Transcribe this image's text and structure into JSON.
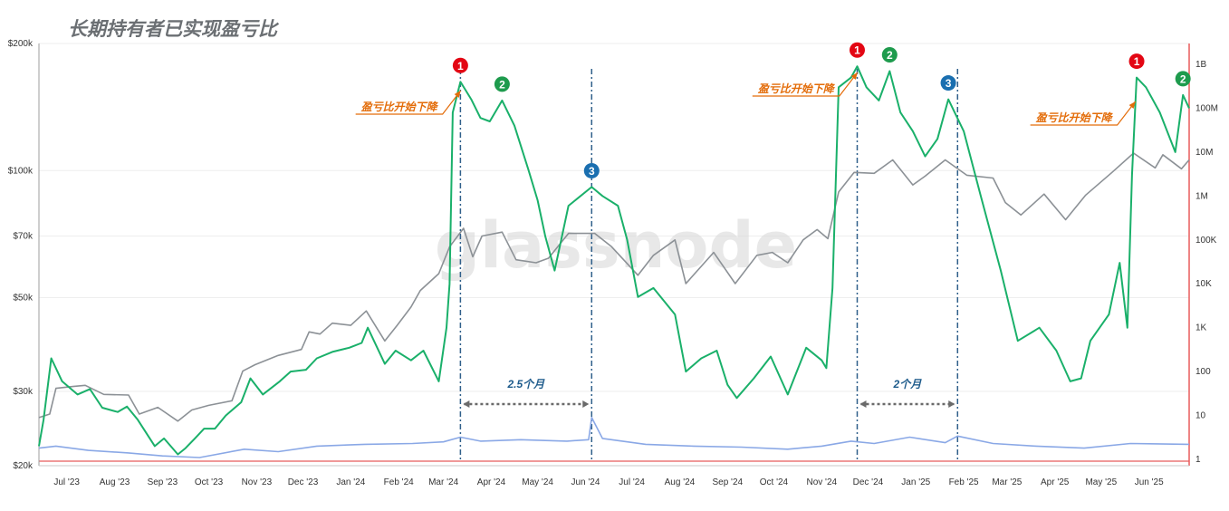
{
  "title": "长期持有者已实现盈亏比",
  "watermark": "glassnode",
  "chart_data": {
    "type": "line",
    "title": "长期持有者已实现盈亏比",
    "left_axis": {
      "scale": "log",
      "range": [
        20000,
        200000
      ],
      "ticks": [
        {
          "value": 200000,
          "label": "$200k"
        },
        {
          "value": 100000,
          "label": "$100k"
        },
        {
          "value": 70000,
          "label": "$70k"
        },
        {
          "value": 50000,
          "label": "$50k"
        },
        {
          "value": 30000,
          "label": "$30k"
        },
        {
          "value": 20000,
          "label": "$20k"
        }
      ]
    },
    "right_axis": {
      "scale": "log",
      "ticks": [
        {
          "value": 1000000000,
          "label": "1B"
        },
        {
          "value": 100000000,
          "label": "100M"
        },
        {
          "value": 10000000,
          "label": "10M"
        },
        {
          "value": 1000000,
          "label": "1M"
        },
        {
          "value": 100000,
          "label": "100K"
        },
        {
          "value": 10000,
          "label": "10K"
        },
        {
          "value": 1000,
          "label": "1K"
        },
        {
          "value": 100,
          "label": "100"
        },
        {
          "value": 10,
          "label": "10"
        },
        {
          "value": 1,
          "label": "1"
        }
      ]
    },
    "x_axis": {
      "range": [
        "2023-06-13",
        "2025-06-27"
      ],
      "ticks": [
        {
          "date": "2023-07-01",
          "label": "Jul '23"
        },
        {
          "date": "2023-08-01",
          "label": "Aug '23"
        },
        {
          "date": "2023-09-01",
          "label": "Sep '23"
        },
        {
          "date": "2023-10-01",
          "label": "Oct '23"
        },
        {
          "date": "2023-11-01",
          "label": "Nov '23"
        },
        {
          "date": "2023-12-01",
          "label": "Dec '23"
        },
        {
          "date": "2024-01-01",
          "label": "Jan '24"
        },
        {
          "date": "2024-02-01",
          "label": "Feb '24"
        },
        {
          "date": "2024-03-01",
          "label": "Mar '24"
        },
        {
          "date": "2024-04-01",
          "label": "Apr '24"
        },
        {
          "date": "2024-05-01",
          "label": "May '24"
        },
        {
          "date": "2024-06-01",
          "label": "Jun '24"
        },
        {
          "date": "2024-07-01",
          "label": "Jul '24"
        },
        {
          "date": "2024-08-01",
          "label": "Aug '24"
        },
        {
          "date": "2024-09-01",
          "label": "Sep '24"
        },
        {
          "date": "2024-10-01",
          "label": "Oct '24"
        },
        {
          "date": "2024-11-01",
          "label": "Nov '24"
        },
        {
          "date": "2024-12-01",
          "label": "Dec '24"
        },
        {
          "date": "2025-01-01",
          "label": "Jan '25"
        },
        {
          "date": "2025-02-01",
          "label": "Feb '25"
        },
        {
          "date": "2025-03-01",
          "label": "Mar '25"
        },
        {
          "date": "2025-04-01",
          "label": "Apr '25"
        },
        {
          "date": "2025-05-01",
          "label": "May '25"
        },
        {
          "date": "2025-06-01",
          "label": "Jun '25"
        }
      ]
    },
    "series": [
      {
        "axis": "left",
        "color": "#8c9196",
        "points": [
          [
            "2023-06-13",
            26000
          ],
          [
            "2023-06-20",
            26500
          ],
          [
            "2023-06-24",
            30500
          ],
          [
            "2023-07-05",
            30800
          ],
          [
            "2023-07-13",
            31000
          ],
          [
            "2023-07-25",
            29500
          ],
          [
            "2023-08-10",
            29400
          ],
          [
            "2023-08-17",
            26500
          ],
          [
            "2023-08-29",
            27500
          ],
          [
            "2023-09-11",
            25500
          ],
          [
            "2023-09-20",
            27100
          ],
          [
            "2023-10-01",
            27800
          ],
          [
            "2023-10-16",
            28500
          ],
          [
            "2023-10-23",
            33500
          ],
          [
            "2023-10-31",
            34700
          ],
          [
            "2023-11-15",
            36500
          ],
          [
            "2023-11-30",
            37700
          ],
          [
            "2023-12-05",
            41500
          ],
          [
            "2023-12-12",
            41000
          ],
          [
            "2023-12-20",
            43500
          ],
          [
            "2024-01-01",
            43000
          ],
          [
            "2024-01-11",
            46500
          ],
          [
            "2024-01-23",
            39500
          ],
          [
            "2024-01-31",
            43000
          ],
          [
            "2024-02-09",
            47500
          ],
          [
            "2024-02-15",
            52000
          ],
          [
            "2024-02-27",
            57000
          ],
          [
            "2024-03-05",
            66000
          ],
          [
            "2024-03-14",
            73000
          ],
          [
            "2024-03-20",
            62500
          ],
          [
            "2024-03-26",
            70000
          ],
          [
            "2024-04-08",
            71500
          ],
          [
            "2024-04-17",
            61500
          ],
          [
            "2024-04-30",
            60500
          ],
          [
            "2024-05-08",
            62000
          ],
          [
            "2024-05-21",
            71000
          ],
          [
            "2024-06-07",
            71000
          ],
          [
            "2024-06-18",
            66000
          ],
          [
            "2024-07-05",
            56500
          ],
          [
            "2024-07-15",
            63000
          ],
          [
            "2024-07-29",
            68500
          ],
          [
            "2024-08-05",
            54000
          ],
          [
            "2024-08-23",
            64000
          ],
          [
            "2024-09-06",
            54000
          ],
          [
            "2024-09-20",
            63000
          ],
          [
            "2024-09-30",
            64000
          ],
          [
            "2024-10-10",
            60500
          ],
          [
            "2024-10-20",
            68500
          ],
          [
            "2024-10-29",
            72500
          ],
          [
            "2024-11-05",
            69000
          ],
          [
            "2024-11-12",
            89000
          ],
          [
            "2024-11-22",
            99000
          ],
          [
            "2024-12-05",
            98500
          ],
          [
            "2024-12-17",
            106000
          ],
          [
            "2024-12-30",
            92500
          ],
          [
            "2025-01-07",
            97000
          ],
          [
            "2025-01-20",
            106000
          ],
          [
            "2025-02-03",
            97500
          ],
          [
            "2025-02-20",
            96000
          ],
          [
            "2025-02-28",
            84000
          ],
          [
            "2025-03-10",
            78500
          ],
          [
            "2025-03-25",
            88000
          ],
          [
            "2025-04-08",
            76500
          ],
          [
            "2025-04-21",
            87500
          ],
          [
            "2025-05-08",
            99000
          ],
          [
            "2025-05-22",
            110000
          ],
          [
            "2025-06-05",
            101500
          ],
          [
            "2025-06-10",
            109000
          ],
          [
            "2025-06-22",
            101000
          ],
          [
            "2025-06-27",
            106000
          ]
        ]
      },
      {
        "axis": "right",
        "color": "#1ab06a",
        "points": [
          [
            "2023-06-13",
            2
          ],
          [
            "2023-06-16",
            8
          ],
          [
            "2023-06-21",
            200
          ],
          [
            "2023-06-28",
            60
          ],
          [
            "2023-07-08",
            30
          ],
          [
            "2023-07-16",
            40
          ],
          [
            "2023-07-24",
            15
          ],
          [
            "2023-08-03",
            12
          ],
          [
            "2023-08-09",
            16
          ],
          [
            "2023-08-16",
            8
          ],
          [
            "2023-08-27",
            2
          ],
          [
            "2023-09-02",
            3
          ],
          [
            "2023-09-11",
            1.3
          ],
          [
            "2023-09-16",
            1.8
          ],
          [
            "2023-09-22",
            3
          ],
          [
            "2023-09-28",
            5
          ],
          [
            "2023-10-05",
            5
          ],
          [
            "2023-10-12",
            10
          ],
          [
            "2023-10-22",
            20
          ],
          [
            "2023-10-28",
            70
          ],
          [
            "2023-11-05",
            30
          ],
          [
            "2023-11-16",
            60
          ],
          [
            "2023-11-23",
            100
          ],
          [
            "2023-12-03",
            110
          ],
          [
            "2023-12-10",
            200
          ],
          [
            "2023-12-20",
            280
          ],
          [
            "2023-12-31",
            350
          ],
          [
            "2024-01-08",
            450
          ],
          [
            "2024-01-12",
            1000
          ],
          [
            "2024-01-23",
            150
          ],
          [
            "2024-01-30",
            300
          ],
          [
            "2024-02-09",
            180
          ],
          [
            "2024-02-17",
            300
          ],
          [
            "2024-02-27",
            60
          ],
          [
            "2024-03-03",
            1000
          ],
          [
            "2024-03-05",
            10000
          ],
          [
            "2024-03-07",
            80000000
          ],
          [
            "2024-03-12",
            400000000
          ],
          [
            "2024-03-19",
            160000000
          ],
          [
            "2024-03-25",
            60000000
          ],
          [
            "2024-03-31",
            50000000
          ],
          [
            "2024-04-08",
            150000000
          ],
          [
            "2024-04-16",
            40000000
          ],
          [
            "2024-04-25",
            4000000
          ],
          [
            "2024-05-01",
            800000
          ],
          [
            "2024-05-06",
            120000
          ],
          [
            "2024-05-12",
            20000
          ],
          [
            "2024-05-21",
            600000
          ],
          [
            "2024-06-05",
            1600000
          ],
          [
            "2024-06-12",
            1000000
          ],
          [
            "2024-06-22",
            600000
          ],
          [
            "2024-06-28",
            100000
          ],
          [
            "2024-07-05",
            5000
          ],
          [
            "2024-07-15",
            8000
          ],
          [
            "2024-07-29",
            2000
          ],
          [
            "2024-08-05",
            100
          ],
          [
            "2024-08-15",
            200
          ],
          [
            "2024-08-25",
            300
          ],
          [
            "2024-09-01",
            50
          ],
          [
            "2024-09-07",
            25
          ],
          [
            "2024-09-18",
            70
          ],
          [
            "2024-09-29",
            220
          ],
          [
            "2024-10-10",
            30
          ],
          [
            "2024-10-22",
            350
          ],
          [
            "2024-11-01",
            180
          ],
          [
            "2024-11-04",
            120
          ],
          [
            "2024-11-08",
            8000
          ],
          [
            "2024-11-12",
            300000000
          ],
          [
            "2024-11-20",
            500000000
          ],
          [
            "2024-11-24",
            900000000
          ],
          [
            "2024-11-30",
            300000000
          ],
          [
            "2024-12-08",
            150000000
          ],
          [
            "2024-12-15",
            700000000
          ],
          [
            "2024-12-22",
            80000000
          ],
          [
            "2024-12-30",
            30000000
          ],
          [
            "2025-01-07",
            8000000
          ],
          [
            "2025-01-15",
            20000000
          ],
          [
            "2025-01-22",
            160000000
          ],
          [
            "2025-02-01",
            30000000
          ],
          [
            "2025-02-12",
            1000000
          ],
          [
            "2025-02-25",
            20000
          ],
          [
            "2025-03-08",
            500
          ],
          [
            "2025-03-22",
            1000
          ],
          [
            "2025-04-02",
            300
          ],
          [
            "2025-04-11",
            60
          ],
          [
            "2025-04-18",
            70
          ],
          [
            "2025-04-24",
            500
          ],
          [
            "2025-05-06",
            2000
          ],
          [
            "2025-05-13",
            30000
          ],
          [
            "2025-05-18",
            1000
          ],
          [
            "2025-05-21",
            3000000
          ],
          [
            "2025-05-24",
            500000000
          ],
          [
            "2025-05-30",
            300000000
          ],
          [
            "2025-06-08",
            80000000
          ],
          [
            "2025-06-18",
            10000000
          ],
          [
            "2025-06-23",
            200000000
          ],
          [
            "2025-06-27",
            100000000
          ]
        ]
      },
      {
        "axis": "right",
        "color": "#8aa8e6",
        "points": [
          [
            "2023-06-13",
            1.8
          ],
          [
            "2023-06-24",
            2
          ],
          [
            "2023-07-15",
            1.6
          ],
          [
            "2023-08-10",
            1.4
          ],
          [
            "2023-09-01",
            1.2
          ],
          [
            "2023-09-25",
            1.1
          ],
          [
            "2023-10-24",
            1.7
          ],
          [
            "2023-11-15",
            1.5
          ],
          [
            "2023-12-10",
            2
          ],
          [
            "2024-01-10",
            2.2
          ],
          [
            "2024-02-10",
            2.3
          ],
          [
            "2024-03-01",
            2.5
          ],
          [
            "2024-03-12",
            3.2
          ],
          [
            "2024-03-25",
            2.6
          ],
          [
            "2024-04-20",
            2.8
          ],
          [
            "2024-05-20",
            2.6
          ],
          [
            "2024-06-03",
            2.8
          ],
          [
            "2024-06-05",
            9
          ],
          [
            "2024-06-12",
            3
          ],
          [
            "2024-07-10",
            2.2
          ],
          [
            "2024-08-10",
            2
          ],
          [
            "2024-09-10",
            1.9
          ],
          [
            "2024-10-10",
            1.7
          ],
          [
            "2024-11-01",
            2
          ],
          [
            "2024-11-20",
            2.6
          ],
          [
            "2024-12-05",
            2.3
          ],
          [
            "2024-12-28",
            3.2
          ],
          [
            "2025-01-20",
            2.4
          ],
          [
            "2025-01-28",
            3.4
          ],
          [
            "2025-02-20",
            2.3
          ],
          [
            "2025-03-20",
            2
          ],
          [
            "2025-04-20",
            1.8
          ],
          [
            "2025-05-20",
            2.3
          ],
          [
            "2025-06-27",
            2.2
          ]
        ]
      }
    ],
    "markers": [
      {
        "label": "1",
        "color": "#e30613",
        "date": "2024-03-12",
        "value": 400000000
      },
      {
        "label": "2",
        "color": "#1e9b4d",
        "date": "2024-04-08",
        "value": 150000000
      },
      {
        "label": "3",
        "color": "#1a6fb0",
        "date": "2024-06-05",
        "value": 1600000
      },
      {
        "label": "1",
        "color": "#e30613",
        "date": "2024-11-24",
        "value": 900000000
      },
      {
        "label": "2",
        "color": "#1e9b4d",
        "date": "2024-12-15",
        "value": 700000000
      },
      {
        "label": "3",
        "color": "#1a6fb0",
        "date": "2025-01-22",
        "value": 160000000
      },
      {
        "label": "1",
        "color": "#e30613",
        "date": "2025-05-24",
        "value": 500000000
      },
      {
        "label": "2",
        "color": "#1e9b4d",
        "date": "2025-06-23",
        "value": 200000000
      }
    ],
    "annotations": [
      {
        "text": "盈亏比开始下降",
        "color": "#e36c09",
        "date": "2024-03-11"
      },
      {
        "text": "盈亏比开始下降",
        "color": "#e36c09",
        "date": "2024-11-23"
      },
      {
        "text": "盈亏比开始下降",
        "color": "#e36c09",
        "date": "2025-05-22"
      }
    ],
    "vertical_lines": [
      {
        "date": "2024-03-12"
      },
      {
        "date": "2024-06-05"
      },
      {
        "date": "2024-11-24"
      },
      {
        "date": "2025-01-28"
      }
    ],
    "spans": [
      {
        "label": "2.5个月",
        "from": "2024-03-12",
        "to": "2024-06-05"
      },
      {
        "label": "2个月",
        "from": "2024-11-24",
        "to": "2025-01-28"
      }
    ],
    "grid": true
  }
}
